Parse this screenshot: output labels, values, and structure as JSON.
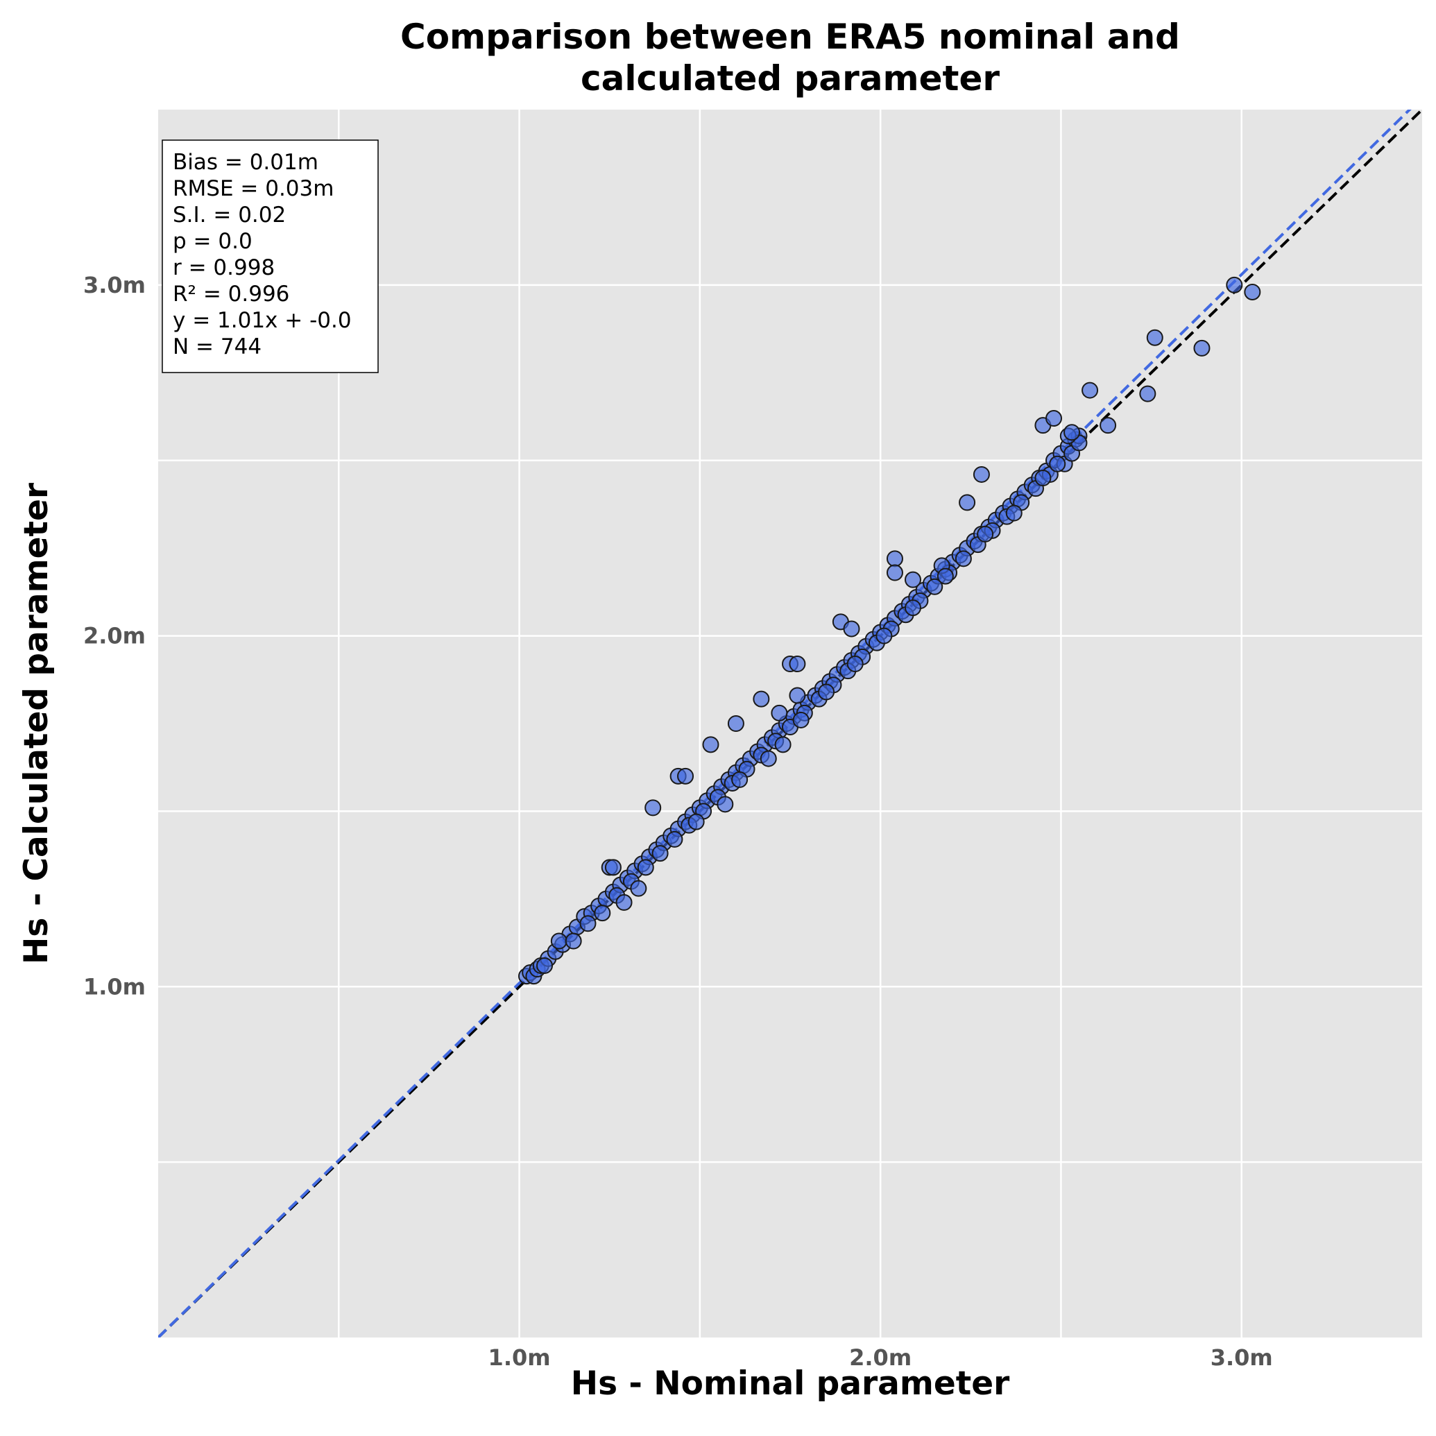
{
  "chart_data": {
    "type": "scatter",
    "title_lines": [
      "Comparison between ERA5 nominal and",
      "calculated parameter"
    ],
    "xlabel": "Hs - Nominal parameter",
    "ylabel": "Hs - Calculated parameter",
    "xlim": [
      0.0,
      3.5
    ],
    "ylim": [
      0.0,
      3.5
    ],
    "grid": true,
    "x_ticks": [
      {
        "value": 1.0,
        "label": "1.0m"
      },
      {
        "value": 2.0,
        "label": "2.0m"
      },
      {
        "value": 3.0,
        "label": "3.0m"
      }
    ],
    "y_ticks": [
      {
        "value": 1.0,
        "label": "1.0m"
      },
      {
        "value": 2.0,
        "label": "2.0m"
      },
      {
        "value": 3.0,
        "label": "3.0m"
      }
    ],
    "minor_gridlines": [
      0.5,
      1.5,
      2.5
    ],
    "stats_box": {
      "placement": "top-left",
      "lines": [
        "Bias = 0.01m",
        "RMSE = 0.03m",
        "S.I. = 0.02",
        "p = 0.0",
        "r = 0.998",
        "R² = 0.996",
        "y = 1.01x + -0.0",
        "N = 744"
      ]
    },
    "identity_line": {
      "color": "#000000",
      "style": "dashed"
    },
    "fit_line": {
      "slope": 1.01,
      "intercept": 0.0,
      "color": "#4169e1",
      "style": "dashed"
    },
    "point_color": "#4169e1",
    "points": [
      [
        1.02,
        1.03
      ],
      [
        1.03,
        1.04
      ],
      [
        1.04,
        1.03
      ],
      [
        1.05,
        1.05
      ],
      [
        1.06,
        1.06
      ],
      [
        1.08,
        1.08
      ],
      [
        1.1,
        1.1
      ],
      [
        1.12,
        1.12
      ],
      [
        1.14,
        1.15
      ],
      [
        1.16,
        1.17
      ],
      [
        1.18,
        1.2
      ],
      [
        1.2,
        1.21
      ],
      [
        1.22,
        1.23
      ],
      [
        1.24,
        1.25
      ],
      [
        1.26,
        1.27
      ],
      [
        1.28,
        1.29
      ],
      [
        1.3,
        1.31
      ],
      [
        1.32,
        1.33
      ],
      [
        1.34,
        1.35
      ],
      [
        1.36,
        1.37
      ],
      [
        1.38,
        1.39
      ],
      [
        1.4,
        1.41
      ],
      [
        1.42,
        1.43
      ],
      [
        1.44,
        1.45
      ],
      [
        1.46,
        1.47
      ],
      [
        1.48,
        1.49
      ],
      [
        1.5,
        1.51
      ],
      [
        1.52,
        1.53
      ],
      [
        1.54,
        1.55
      ],
      [
        1.56,
        1.57
      ],
      [
        1.58,
        1.59
      ],
      [
        1.6,
        1.61
      ],
      [
        1.62,
        1.63
      ],
      [
        1.64,
        1.65
      ],
      [
        1.66,
        1.67
      ],
      [
        1.68,
        1.69
      ],
      [
        1.7,
        1.71
      ],
      [
        1.72,
        1.73
      ],
      [
        1.74,
        1.75
      ],
      [
        1.76,
        1.77
      ],
      [
        1.78,
        1.79
      ],
      [
        1.8,
        1.81
      ],
      [
        1.82,
        1.83
      ],
      [
        1.84,
        1.85
      ],
      [
        1.86,
        1.87
      ],
      [
        1.88,
        1.89
      ],
      [
        1.9,
        1.91
      ],
      [
        1.92,
        1.93
      ],
      [
        1.94,
        1.95
      ],
      [
        1.96,
        1.97
      ],
      [
        1.98,
        1.99
      ],
      [
        2.0,
        2.01
      ],
      [
        2.02,
        2.03
      ],
      [
        2.04,
        2.05
      ],
      [
        2.06,
        2.07
      ],
      [
        2.08,
        2.09
      ],
      [
        2.1,
        2.11
      ],
      [
        2.12,
        2.13
      ],
      [
        2.14,
        2.15
      ],
      [
        2.16,
        2.17
      ],
      [
        2.18,
        2.19
      ],
      [
        2.2,
        2.21
      ],
      [
        2.22,
        2.23
      ],
      [
        2.24,
        2.25
      ],
      [
        2.26,
        2.27
      ],
      [
        2.28,
        2.29
      ],
      [
        2.3,
        2.31
      ],
      [
        2.32,
        2.33
      ],
      [
        2.34,
        2.35
      ],
      [
        2.36,
        2.37
      ],
      [
        2.38,
        2.39
      ],
      [
        2.4,
        2.41
      ],
      [
        2.42,
        2.43
      ],
      [
        2.44,
        2.45
      ],
      [
        2.46,
        2.47
      ],
      [
        2.48,
        2.5
      ],
      [
        2.5,
        2.52
      ],
      [
        2.52,
        2.54
      ],
      [
        2.54,
        2.56
      ],
      [
        2.55,
        2.57
      ],
      [
        1.07,
        1.06
      ],
      [
        1.11,
        1.13
      ],
      [
        1.15,
        1.13
      ],
      [
        1.19,
        1.18
      ],
      [
        1.23,
        1.21
      ],
      [
        1.27,
        1.26
      ],
      [
        1.31,
        1.3
      ],
      [
        1.35,
        1.34
      ],
      [
        1.39,
        1.38
      ],
      [
        1.43,
        1.42
      ],
      [
        1.47,
        1.46
      ],
      [
        1.51,
        1.5
      ],
      [
        1.55,
        1.54
      ],
      [
        1.59,
        1.58
      ],
      [
        1.63,
        1.62
      ],
      [
        1.67,
        1.66
      ],
      [
        1.71,
        1.7
      ],
      [
        1.75,
        1.74
      ],
      [
        1.79,
        1.78
      ],
      [
        1.83,
        1.82
      ],
      [
        1.87,
        1.86
      ],
      [
        1.91,
        1.9
      ],
      [
        1.95,
        1.94
      ],
      [
        1.99,
        1.98
      ],
      [
        2.03,
        2.02
      ],
      [
        2.07,
        2.06
      ],
      [
        2.11,
        2.1
      ],
      [
        2.15,
        2.14
      ],
      [
        2.19,
        2.18
      ],
      [
        2.23,
        2.22
      ],
      [
        2.27,
        2.26
      ],
      [
        2.31,
        2.3
      ],
      [
        2.35,
        2.34
      ],
      [
        2.39,
        2.38
      ],
      [
        2.43,
        2.42
      ],
      [
        2.47,
        2.46
      ],
      [
        2.51,
        2.49
      ],
      [
        1.25,
        1.34
      ],
      [
        1.26,
        1.34
      ],
      [
        1.37,
        1.51
      ],
      [
        1.44,
        1.6
      ],
      [
        1.46,
        1.6
      ],
      [
        1.53,
        1.69
      ],
      [
        1.6,
        1.75
      ],
      [
        1.67,
        1.82
      ],
      [
        1.72,
        1.78
      ],
      [
        1.75,
        1.92
      ],
      [
        1.77,
        1.92
      ],
      [
        1.77,
        1.83
      ],
      [
        1.89,
        2.04
      ],
      [
        1.92,
        2.02
      ],
      [
        2.04,
        2.22
      ],
      [
        2.04,
        2.18
      ],
      [
        2.09,
        2.16
      ],
      [
        2.17,
        2.2
      ],
      [
        2.24,
        2.38
      ],
      [
        2.28,
        2.46
      ],
      [
        2.45,
        2.6
      ],
      [
        2.48,
        2.62
      ],
      [
        2.58,
        2.7
      ],
      [
        2.63,
        2.6
      ],
      [
        2.74,
        2.69
      ],
      [
        2.76,
        2.85
      ],
      [
        2.89,
        2.82
      ],
      [
        2.98,
        3.0
      ],
      [
        3.03,
        2.98
      ],
      [
        1.29,
        1.24
      ],
      [
        1.33,
        1.28
      ],
      [
        1.49,
        1.47
      ],
      [
        1.57,
        1.52
      ],
      [
        1.61,
        1.59
      ],
      [
        1.69,
        1.65
      ],
      [
        1.73,
        1.69
      ],
      [
        1.78,
        1.76
      ],
      [
        1.85,
        1.84
      ],
      [
        1.93,
        1.92
      ],
      [
        2.01,
        2.0
      ],
      [
        2.09,
        2.08
      ],
      [
        2.18,
        2.17
      ],
      [
        2.29,
        2.29
      ],
      [
        2.37,
        2.35
      ],
      [
        2.45,
        2.45
      ],
      [
        2.49,
        2.49
      ],
      [
        2.53,
        2.52
      ],
      [
        2.55,
        2.55
      ],
      [
        2.52,
        2.57
      ],
      [
        2.53,
        2.58
      ]
    ]
  }
}
